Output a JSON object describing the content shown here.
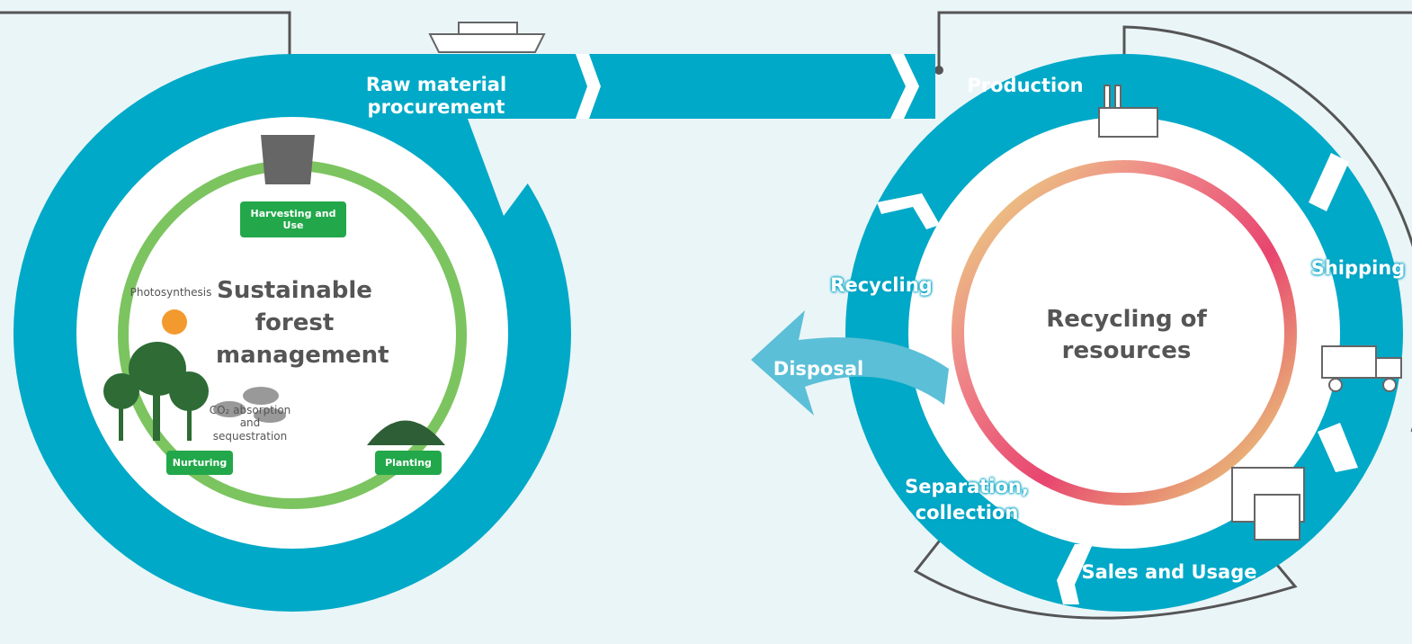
{
  "forest": {
    "title": "Sustainable forest management",
    "harvesting": "Harvesting and Use",
    "nurturing": "Nurturing",
    "planting": "Planting",
    "photosynthesis": "Photosynthesis",
    "co2": "CO₂ absorption and sequestration"
  },
  "flow": {
    "raw_material": "Raw material procurement",
    "production": "Production",
    "shipping": "Shipping",
    "sales": "Sales and Usage",
    "separation": "Separation, collection",
    "recycling": "Recycling",
    "disposal": "Disposal"
  },
  "recycling_center": {
    "title": "Recycling of resources"
  }
}
